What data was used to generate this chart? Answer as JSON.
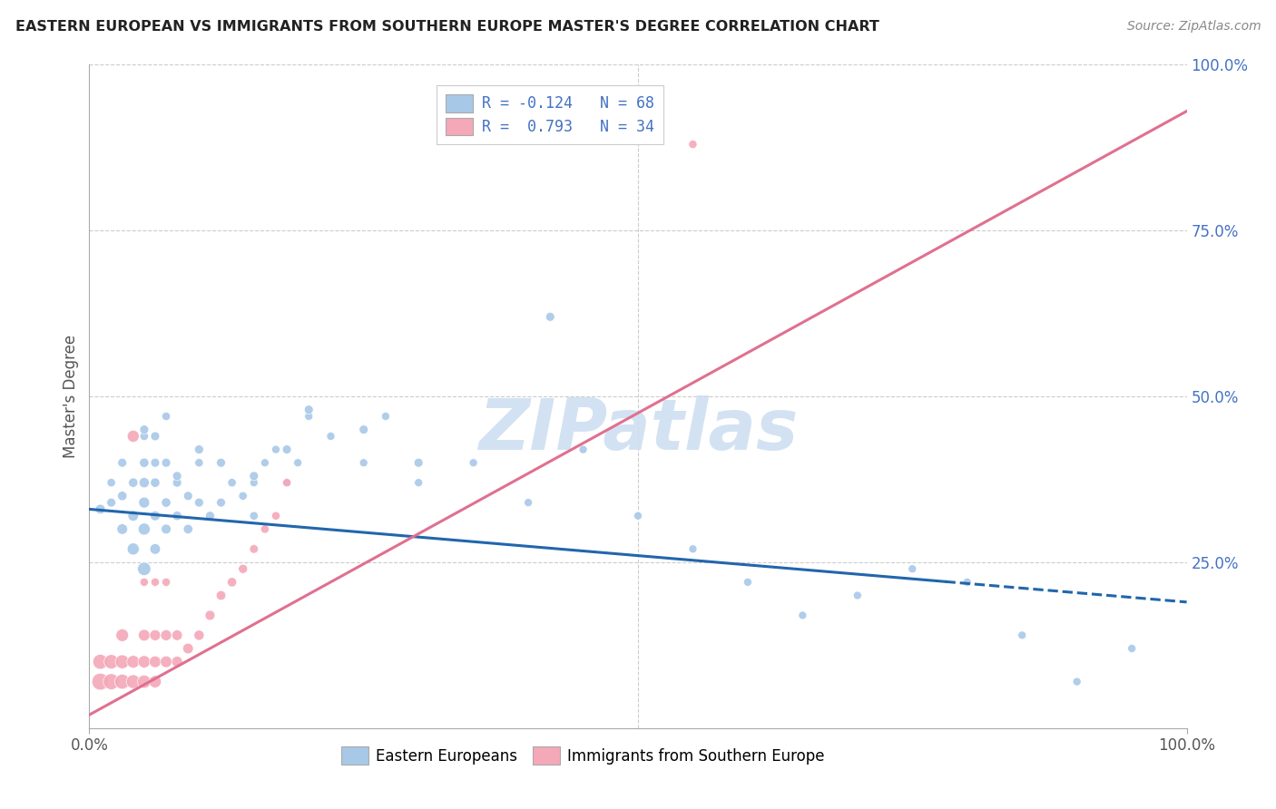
{
  "title": "EASTERN EUROPEAN VS IMMIGRANTS FROM SOUTHERN EUROPE MASTER'S DEGREE CORRELATION CHART",
  "source": "Source: ZipAtlas.com",
  "ylabel": "Master's Degree",
  "legend_label1": "Eastern Europeans",
  "legend_label2": "Immigrants from Southern Europe",
  "r1": -0.124,
  "n1": 68,
  "r2": 0.793,
  "n2": 34,
  "color_blue": "#a8c8e8",
  "color_pink": "#f4a8b8",
  "line_blue": "#2166ac",
  "line_pink": "#e07090",
  "watermark": "ZIPatlas",
  "xlim": [
    0,
    100
  ],
  "ylim": [
    0,
    100
  ],
  "blue_scatter_x": [
    1,
    2,
    2,
    3,
    3,
    4,
    4,
    4,
    5,
    5,
    5,
    5,
    5,
    5,
    6,
    6,
    6,
    6,
    7,
    7,
    7,
    7,
    8,
    8,
    9,
    9,
    10,
    10,
    11,
    12,
    13,
    14,
    15,
    15,
    16,
    17,
    18,
    19,
    20,
    22,
    25,
    27,
    30,
    35,
    40,
    45,
    50,
    55,
    60,
    65,
    70,
    75,
    80,
    85,
    90,
    95,
    3,
    5,
    6,
    8,
    10,
    12,
    15,
    18,
    20,
    25,
    30,
    42
  ],
  "blue_scatter_y": [
    33,
    34,
    37,
    30,
    35,
    27,
    32,
    37,
    24,
    30,
    34,
    37,
    40,
    44,
    27,
    32,
    37,
    40,
    30,
    34,
    40,
    47,
    32,
    37,
    30,
    35,
    34,
    40,
    32,
    34,
    37,
    35,
    32,
    37,
    40,
    42,
    37,
    40,
    47,
    44,
    40,
    47,
    37,
    40,
    34,
    42,
    32,
    27,
    22,
    17,
    20,
    24,
    22,
    14,
    7,
    12,
    40,
    45,
    44,
    38,
    42,
    40,
    38,
    42,
    48,
    45,
    40,
    62
  ],
  "blue_scatter_size": [
    60,
    50,
    45,
    70,
    55,
    90,
    70,
    55,
    110,
    90,
    75,
    65,
    55,
    45,
    70,
    60,
    55,
    50,
    60,
    55,
    50,
    45,
    55,
    50,
    55,
    50,
    50,
    45,
    50,
    50,
    45,
    45,
    45,
    42,
    42,
    42,
    42,
    42,
    42,
    42,
    42,
    42,
    42,
    42,
    42,
    42,
    42,
    42,
    42,
    42,
    42,
    42,
    42,
    42,
    42,
    42,
    50,
    50,
    50,
    50,
    50,
    50,
    50,
    50,
    50,
    50,
    50,
    50
  ],
  "pink_scatter_x": [
    1,
    1,
    2,
    2,
    3,
    3,
    3,
    4,
    4,
    5,
    5,
    5,
    6,
    6,
    6,
    7,
    7,
    8,
    8,
    9,
    10,
    11,
    12,
    13,
    14,
    15,
    16,
    17,
    18,
    4,
    5,
    6,
    7,
    55
  ],
  "pink_scatter_y": [
    7,
    10,
    7,
    10,
    7,
    10,
    14,
    7,
    10,
    7,
    10,
    14,
    7,
    10,
    14,
    10,
    14,
    10,
    14,
    12,
    14,
    17,
    20,
    22,
    24,
    27,
    30,
    32,
    37,
    44,
    22,
    22,
    22,
    88
  ],
  "pink_scatter_size": [
    180,
    140,
    160,
    130,
    140,
    120,
    100,
    120,
    100,
    110,
    95,
    85,
    95,
    85,
    75,
    85,
    75,
    75,
    70,
    70,
    65,
    62,
    58,
    55,
    52,
    48,
    45,
    44,
    44,
    90,
    44,
    44,
    44,
    44
  ],
  "blue_line_x0": 0,
  "blue_line_x1": 100,
  "blue_line_y0": 33,
  "blue_line_y1": 19,
  "blue_solid_end": 78,
  "pink_line_x0": 0,
  "pink_line_x1": 100,
  "pink_line_y0": 2,
  "pink_line_y1": 93,
  "tick_color": "#4472c4",
  "grid_color": "#cccccc",
  "title_color": "#222222",
  "source_color": "#888888",
  "ylabel_color": "#555555"
}
